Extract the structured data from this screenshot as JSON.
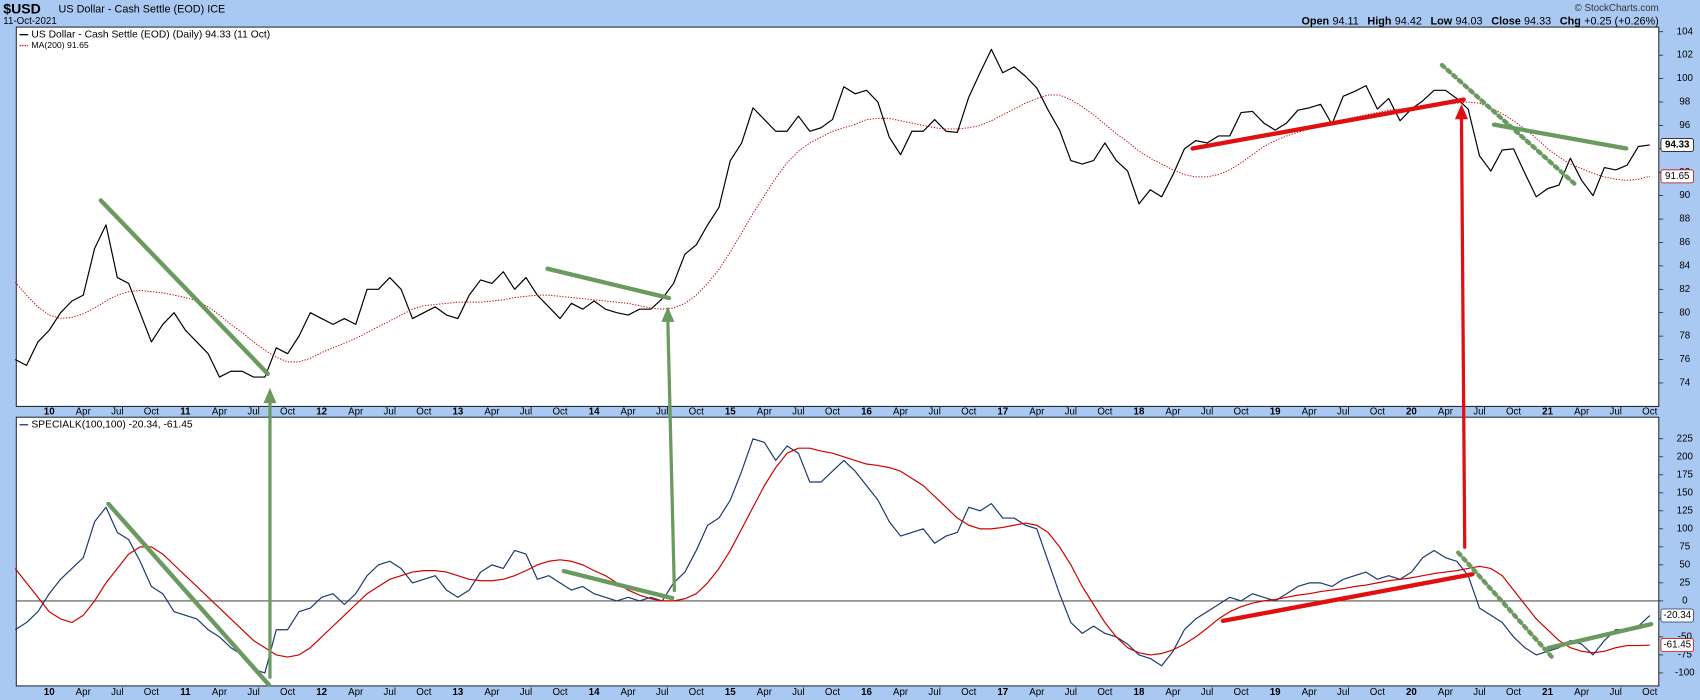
{
  "header": {
    "symbol": "$USD",
    "description": "US Dollar - Cash Settle (EOD) ICE",
    "date": "11-Oct-2021",
    "quote": [
      {
        "label": "Open",
        "value": "94.11"
      },
      {
        "label": "High",
        "value": "94.42"
      },
      {
        "label": "Low",
        "value": "94.03"
      },
      {
        "label": "Close",
        "value": "94.33"
      },
      {
        "label": "Chg",
        "value": "+0.25 (+0.26%)"
      }
    ],
    "watermark": "© StockCharts.com"
  },
  "chart_data": [
    {
      "type": "line",
      "categories": [
        null,
        null,
        null,
        "10",
        null,
        null,
        "Apr",
        null,
        null,
        "Jul",
        null,
        null,
        "Oct",
        null,
        null,
        "11",
        null,
        null,
        "Apr",
        null,
        null,
        "Jul",
        null,
        null,
        "Oct",
        null,
        null,
        "12",
        null,
        null,
        "Apr",
        null,
        null,
        "Jul",
        null,
        null,
        "Oct",
        null,
        null,
        "13",
        null,
        null,
        "Apr",
        null,
        null,
        "Jul",
        null,
        null,
        "Oct",
        null,
        null,
        "14",
        null,
        null,
        "Apr",
        null,
        null,
        "Jul",
        null,
        null,
        "Oct",
        null,
        null,
        "15",
        null,
        null,
        "Apr",
        null,
        null,
        "Jul",
        null,
        null,
        "Oct",
        null,
        null,
        "16",
        null,
        null,
        "Apr",
        null,
        null,
        "Jul",
        null,
        null,
        "Oct",
        null,
        null,
        "17",
        null,
        null,
        "Apr",
        null,
        null,
        "Jul",
        null,
        null,
        "Oct",
        null,
        null,
        "18",
        null,
        null,
        "Apr",
        null,
        null,
        "Jul",
        null,
        null,
        "Oct",
        null,
        null,
        "19",
        null,
        null,
        "Apr",
        null,
        null,
        "Jul",
        null,
        null,
        "Oct",
        null,
        null,
        "20",
        null,
        null,
        "Apr",
        null,
        null,
        "Jul",
        null,
        null,
        "Oct",
        null,
        null,
        "21",
        null,
        null,
        "Apr",
        null,
        null,
        "Jul",
        null,
        null,
        "Oct"
      ],
      "series": [
        {
          "name": "US Dollar - Cash Settle (EOD) (Daily) 94.33 (11 Oct)",
          "color": "#000000",
          "dashed": false,
          "values": [
            76,
            75.5,
            77.5,
            78.5,
            80,
            81,
            81.5,
            85.5,
            87.5,
            83,
            82.5,
            80,
            77.5,
            79,
            80,
            78.5,
            77.5,
            76.5,
            74.5,
            75,
            75,
            74.5,
            74.5,
            77,
            76.5,
            78,
            80,
            79.5,
            79,
            79.5,
            79,
            82,
            82,
            83,
            82,
            79.5,
            80,
            80.5,
            79.8,
            79.5,
            81.5,
            82.8,
            82.5,
            83.5,
            82,
            83,
            81.5,
            80.5,
            79.5,
            80.8,
            80.3,
            81,
            80.3,
            80,
            79.8,
            80.3,
            80.3,
            81.2,
            82.5,
            85,
            85.8,
            87.5,
            89,
            93,
            94.5,
            97.5,
            96.5,
            95.5,
            95.5,
            96.8,
            95.5,
            95.8,
            96.5,
            99.3,
            98.7,
            99,
            98,
            95,
            93.5,
            95.5,
            95.5,
            96.5,
            95.5,
            95.4,
            98.4,
            100.5,
            102.5,
            100.5,
            101,
            100.2,
            99.2,
            97.3,
            95.6,
            93,
            92.7,
            93,
            94.5,
            93,
            92.1,
            89.3,
            90.5,
            89.9,
            91.8,
            94,
            94.7,
            94.5,
            95.1,
            95.1,
            97.1,
            97.2,
            96.2,
            95.6,
            96.2,
            97.3,
            97.5,
            97.8,
            96.1,
            98.5,
            98.9,
            99.4,
            97.4,
            98.3,
            96.4,
            97.4,
            98.1,
            99,
            99,
            98.3,
            97.4,
            93.4,
            92.1,
            93.9,
            94,
            91.9,
            89.9,
            90.6,
            90.9,
            93.2,
            91.3,
            90,
            92.4,
            92.2,
            92.6,
            94.2,
            94.33
          ]
        },
        {
          "name": "MA(200) 91.65",
          "color": "#c00000",
          "dashed": true,
          "values": [
            82.6,
            81.5,
            80.5,
            79.8,
            79.5,
            79.6,
            79.9,
            80.4,
            81,
            81.5,
            81.8,
            81.9,
            81.8,
            81.7,
            81.5,
            81.3,
            81,
            80.5,
            79.8,
            79,
            78.3,
            77.5,
            76.8,
            76.2,
            75.8,
            75.8,
            76.1,
            76.6,
            77,
            77.4,
            77.8,
            78.3,
            78.8,
            79.3,
            79.8,
            80.3,
            80.6,
            80.7,
            80.8,
            80.9,
            80.9,
            80.9,
            81,
            81.1,
            81.3,
            81.4,
            81.5,
            81.5,
            81.4,
            81.3,
            81.2,
            81.1,
            81,
            80.9,
            80.8,
            80.6,
            80.4,
            80.3,
            80.4,
            80.8,
            81.5,
            82.5,
            83.7,
            85.2,
            86.8,
            88.5,
            90,
            91.5,
            92.8,
            93.8,
            94.5,
            95,
            95.5,
            95.8,
            96.1,
            96.5,
            96.6,
            96.6,
            96.4,
            96.2,
            96,
            95.8,
            95.7,
            95.7,
            95.8,
            96,
            96.4,
            96.9,
            97.4,
            97.9,
            98.3,
            98.6,
            98.6,
            98.2,
            97.6,
            96.9,
            96.1,
            95.3,
            94.6,
            93.8,
            93.2,
            92.7,
            92.2,
            91.8,
            91.6,
            91.6,
            91.8,
            92.2,
            92.8,
            93.5,
            94.2,
            94.7,
            95.1,
            95.4,
            95.7,
            96,
            96.3,
            96.5,
            96.7,
            96.9,
            97.1,
            97.3,
            97.4,
            97.5,
            97.6,
            97.7,
            97.8,
            97.9,
            98,
            97.9,
            97.5,
            97,
            96.4,
            95.7,
            94.9,
            94,
            93.3,
            92.7,
            92.3,
            91.9,
            91.6,
            91.4,
            91.3,
            91.4,
            91.65
          ]
        }
      ],
      "ylim": [
        72,
        104.4
      ],
      "yticks": [
        74,
        76,
        78,
        80,
        82,
        84,
        86,
        88,
        90,
        92,
        94,
        96,
        98,
        100,
        102,
        104
      ]
    },
    {
      "type": "line",
      "legend_text": "SPECIALK(100,100) -20.34, -61.45",
      "categories": [
        null,
        null,
        null,
        "10",
        null,
        null,
        "Apr",
        null,
        null,
        "Jul",
        null,
        null,
        "Oct",
        null,
        null,
        "11",
        null,
        null,
        "Apr",
        null,
        null,
        "Jul",
        null,
        null,
        "Oct",
        null,
        null,
        "12",
        null,
        null,
        "Apr",
        null,
        null,
        "Jul",
        null,
        null,
        "Oct",
        null,
        null,
        "13",
        null,
        null,
        "Apr",
        null,
        null,
        "Jul",
        null,
        null,
        "Oct",
        null,
        null,
        "14",
        null,
        null,
        "Apr",
        null,
        null,
        "Jul",
        null,
        null,
        "Oct",
        null,
        null,
        "15",
        null,
        null,
        "Apr",
        null,
        null,
        "Jul",
        null,
        null,
        "Oct",
        null,
        null,
        "16",
        null,
        null,
        "Apr",
        null,
        null,
        "Jul",
        null,
        null,
        "Oct",
        null,
        null,
        "17",
        null,
        null,
        "Apr",
        null,
        null,
        "Jul",
        null,
        null,
        "Oct",
        null,
        null,
        "18",
        null,
        null,
        "Apr",
        null,
        null,
        "Jul",
        null,
        null,
        "Oct",
        null,
        null,
        "19",
        null,
        null,
        "Apr",
        null,
        null,
        "Jul",
        null,
        null,
        "Oct",
        null,
        null,
        "20",
        null,
        null,
        "Apr",
        null,
        null,
        "Jul",
        null,
        null,
        "Oct",
        null,
        null,
        "21",
        null,
        null,
        "Apr",
        null,
        null,
        "Jul",
        null,
        null,
        "Oct"
      ],
      "series": [
        {
          "color": "#1b3a6b",
          "dashed": false,
          "values": [
            -40,
            -30,
            -15,
            10,
            30,
            45,
            60,
            110,
            130,
            95,
            85,
            55,
            20,
            10,
            -15,
            -20,
            -25,
            -40,
            -50,
            -65,
            -75,
            -95,
            -100,
            -40,
            -40,
            -15,
            -10,
            5,
            10,
            -5,
            10,
            35,
            50,
            55,
            45,
            25,
            30,
            35,
            15,
            5,
            15,
            40,
            50,
            45,
            70,
            65,
            30,
            35,
            25,
            15,
            20,
            10,
            5,
            0,
            5,
            0,
            5,
            0,
            25,
            40,
            70,
            105,
            115,
            140,
            180,
            225,
            220,
            195,
            215,
            205,
            165,
            165,
            180,
            195,
            180,
            160,
            140,
            110,
            90,
            95,
            100,
            80,
            90,
            95,
            130,
            125,
            135,
            115,
            115,
            105,
            100,
            55,
            10,
            -30,
            -45,
            -35,
            -45,
            -50,
            -60,
            -75,
            -80,
            -90,
            -70,
            -40,
            -25,
            -15,
            -5,
            5,
            0,
            10,
            5,
            0,
            10,
            20,
            25,
            25,
            20,
            30,
            35,
            40,
            30,
            35,
            30,
            40,
            60,
            70,
            60,
            55,
            35,
            -10,
            -20,
            -30,
            -50,
            -65,
            -75,
            -70,
            -65,
            -55,
            -60,
            -75,
            -55,
            -40,
            -40,
            -35,
            -20.34
          ]
        },
        {
          "color": "#d00000",
          "dashed": false,
          "values": [
            45,
            25,
            5,
            -15,
            -25,
            -30,
            -20,
            0,
            25,
            45,
            65,
            75,
            75,
            65,
            50,
            35,
            20,
            5,
            -10,
            -25,
            -40,
            -55,
            -65,
            -75,
            -78,
            -75,
            -65,
            -50,
            -35,
            -20,
            -5,
            10,
            20,
            30,
            35,
            40,
            42,
            42,
            40,
            35,
            30,
            28,
            28,
            30,
            35,
            42,
            50,
            55,
            57,
            55,
            50,
            42,
            35,
            25,
            15,
            8,
            3,
            0,
            0,
            3,
            10,
            25,
            45,
            70,
            100,
            130,
            160,
            185,
            205,
            212,
            212,
            208,
            205,
            200,
            195,
            190,
            188,
            185,
            180,
            170,
            160,
            145,
            130,
            115,
            105,
            100,
            100,
            102,
            105,
            108,
            105,
            95,
            75,
            50,
            20,
            -5,
            -30,
            -50,
            -65,
            -72,
            -75,
            -73,
            -68,
            -60,
            -50,
            -38,
            -25,
            -15,
            -8,
            -3,
            0,
            2,
            5,
            8,
            10,
            13,
            15,
            17,
            20,
            22,
            25,
            28,
            30,
            32,
            35,
            38,
            40,
            42,
            45,
            48,
            45,
            35,
            15,
            -5,
            -25,
            -40,
            -55,
            -65,
            -70,
            -72,
            -70,
            -65,
            -62,
            -62,
            -61.45
          ]
        }
      ],
      "ylim": [
        -118,
        255
      ],
      "yticks": [
        -100,
        -75,
        -50,
        -25,
        0,
        25,
        50,
        75,
        100,
        125,
        150,
        175,
        200,
        225
      ]
    }
  ]
}
